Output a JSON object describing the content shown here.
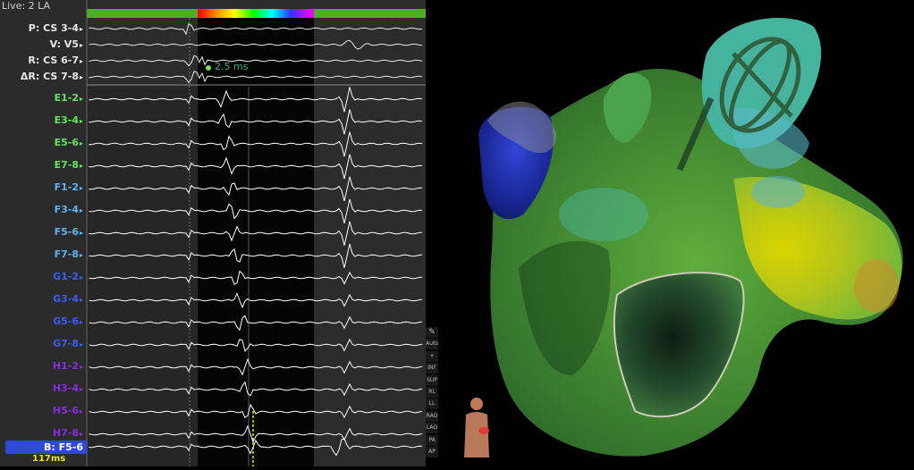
{
  "egm": {
    "live_label": "Live: 2 LA",
    "ref_channels": [
      "P: CS 3-4",
      "V: V5",
      "R: CS 6-7",
      "ΔR: CS 7-8"
    ],
    "measurement": "2.5 ms",
    "electrode_channels": [
      {
        "label": "E1-2",
        "color": "#5ee65e"
      },
      {
        "label": "E3-4",
        "color": "#5ee65e"
      },
      {
        "label": "E5-6",
        "color": "#5ee65e"
      },
      {
        "label": "E7-8",
        "color": "#5ee65e"
      },
      {
        "label": "F1-2",
        "color": "#5fb4f0"
      },
      {
        "label": "F3-4",
        "color": "#5fb4f0"
      },
      {
        "label": "F5-6",
        "color": "#5fb4f0"
      },
      {
        "label": "F7-8",
        "color": "#5fb4f0"
      },
      {
        "label": "G1-2",
        "color": "#3a5cf5"
      },
      {
        "label": "G3-4",
        "color": "#3a5cf5"
      },
      {
        "label": "G5-6",
        "color": "#3a5cf5"
      },
      {
        "label": "G7-8",
        "color": "#3a5cf5"
      },
      {
        "label": "H1-2",
        "color": "#8a2be2"
      },
      {
        "label": "H3-4",
        "color": "#8a2be2"
      },
      {
        "label": "H5-6",
        "color": "#8a2be2"
      },
      {
        "label": "H7-8",
        "color": "#8a2be2"
      }
    ],
    "bottom_channel": "B: F5-6",
    "bottom_ms": "117ms"
  },
  "view_buttons": [
    "Auto",
    "+",
    "INF",
    "SUP",
    "RL",
    "LL",
    "RAO",
    "LAO",
    "PA",
    "AP"
  ],
  "colors": {
    "green": "#5ee65e",
    "cyan": "#5fb4f0",
    "blue": "#3a5cf5",
    "purple": "#8a2be2",
    "window_bar": "#4caf2a",
    "selected_bg": "#2e49d6"
  }
}
